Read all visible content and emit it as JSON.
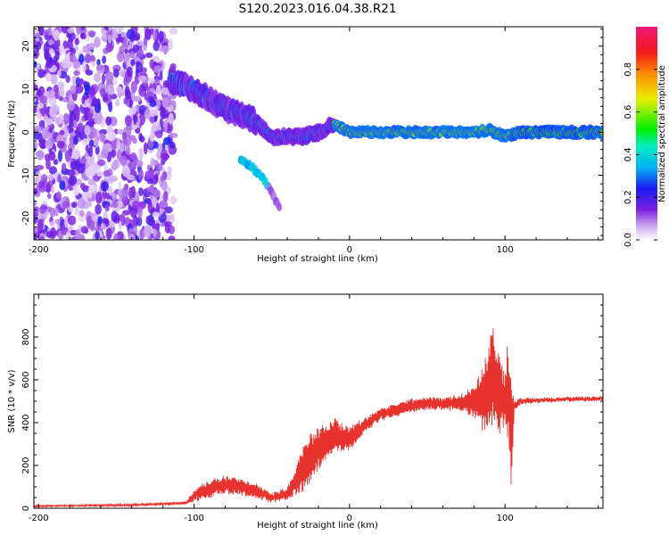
{
  "figure": {
    "title": "S120.2023.016.04.38.R21"
  },
  "colors": {
    "snr_line": "#e8322d",
    "background": "#ffffff",
    "axes": "#000000"
  },
  "chart_data": [
    {
      "type": "heatmap",
      "xlabel": "Height of straight line (km)",
      "ylabel": "Frequency (Hz)",
      "xlim": [
        -203,
        163
      ],
      "ylim": [
        -25,
        24.5
      ],
      "xticks": [
        -200,
        -100,
        0,
        100
      ],
      "yticks": [
        -20,
        -10,
        0,
        10,
        20
      ],
      "colorbar": {
        "label": "Normalized spectral amplitude",
        "range": [
          0,
          1
        ],
        "ticks": [
          0.0,
          0.2,
          0.4,
          0.6,
          0.8
        ],
        "colormap": "rainbow (white to purple, blue, cyan, green, yellow, orange, red, magenta)"
      },
      "features": [
        {
          "name": "diffuse scattering",
          "x_range": [
            -203,
            -113
          ],
          "y_range": [
            -25,
            24.5
          ],
          "amplitude": 0.15
        },
        {
          "name": "dispersive trace",
          "points": [
            [
              -115,
              12
            ],
            [
              -100,
              10
            ],
            [
              -90,
              7.5
            ],
            [
              -80,
              5.5
            ],
            [
              -70,
              4
            ],
            [
              -60,
              2.5
            ],
            [
              -50,
              -1
            ],
            [
              -40,
              -1
            ],
            [
              -30,
              -1
            ],
            [
              -20,
              0
            ],
            [
              -10,
              2
            ],
            [
              0,
              0
            ],
            [
              20,
              0
            ],
            [
              50,
              0
            ],
            [
              80,
              0
            ],
            [
              90,
              0.5
            ],
            [
              100,
              -1
            ],
            [
              110,
              0
            ],
            [
              163,
              0
            ]
          ]
        },
        {
          "name": "secondary branch",
          "points": [
            [
              -70,
              -6
            ],
            [
              -60,
              -9
            ],
            [
              -55,
              -11
            ],
            [
              -50,
              -14
            ],
            [
              -45,
              -18
            ]
          ]
        }
      ]
    },
    {
      "type": "line",
      "xlabel": "Height of straight line (km)",
      "ylabel": "SNR (10 * v/v)",
      "xlim": [
        -203,
        163
      ],
      "ylim": [
        0,
        1000
      ],
      "xticks": [
        -200,
        -100,
        0,
        100
      ],
      "yticks": [
        0,
        200,
        400,
        600,
        800
      ],
      "series": [
        {
          "x": [
            -203,
            -180,
            -150,
            -120,
            -105,
            -100,
            -95,
            -90,
            -80,
            -70,
            -60,
            -50,
            -40,
            -30,
            -25,
            -20,
            -10,
            0,
            10,
            20,
            30,
            40,
            50,
            60,
            70,
            80,
            88,
            92,
            96,
            100,
            102,
            104,
            106,
            110,
            120,
            130,
            140,
            150,
            163
          ],
          "y": [
            10,
            12,
            14,
            20,
            25,
            60,
            80,
            90,
            110,
            100,
            80,
            50,
            70,
            180,
            230,
            280,
            340,
            320,
            390,
            440,
            460,
            480,
            490,
            490,
            495,
            500,
            520,
            620,
            540,
            500,
            560,
            320,
            480,
            500,
            505,
            505,
            510,
            510,
            515
          ],
          "amplitude": [
            3,
            3,
            4,
            4,
            5,
            25,
            35,
            40,
            45,
            40,
            35,
            20,
            30,
            110,
            120,
            100,
            80,
            60,
            35,
            30,
            30,
            30,
            30,
            30,
            35,
            80,
            200,
            230,
            200,
            120,
            280,
            250,
            25,
            12,
            10,
            10,
            10,
            10,
            10
          ]
        }
      ]
    }
  ]
}
